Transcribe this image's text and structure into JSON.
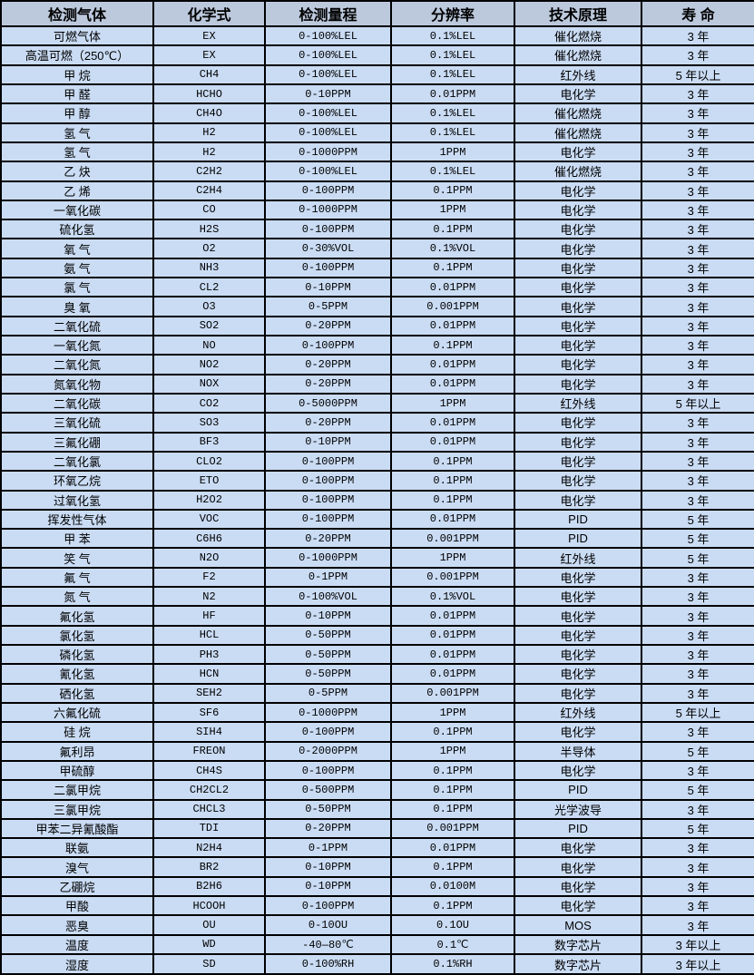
{
  "table": {
    "columns": [
      "检测气体",
      "化学式",
      "检测量程",
      "分辨率",
      "技术原理",
      "寿 命"
    ],
    "rows": [
      [
        "可燃气体",
        "EX",
        "0-100%LEL",
        "0.1%LEL",
        "催化燃烧",
        "3 年"
      ],
      [
        "高温可燃（250℃）",
        "EX",
        "0-100%LEL",
        "0.1%LEL",
        "催化燃烧",
        "3 年"
      ],
      [
        "甲 烷",
        "CH4",
        "0-100%LEL",
        "0.1%LEL",
        "红外线",
        "5 年以上"
      ],
      [
        "甲 醛",
        "HCHO",
        "0-10PPM",
        "0.01PPM",
        "电化学",
        "3 年"
      ],
      [
        "甲 醇",
        "CH4O",
        "0-100%LEL",
        "0.1%LEL",
        "催化燃烧",
        "3 年"
      ],
      [
        "氢 气",
        "H2",
        "0-100%LEL",
        "0.1%LEL",
        "催化燃烧",
        "3 年"
      ],
      [
        "氢 气",
        "H2",
        "0-1000PPM",
        "1PPM",
        "电化学",
        "3 年"
      ],
      [
        "乙 炔",
        "C2H2",
        "0-100%LEL",
        "0.1%LEL",
        "催化燃烧",
        "3 年"
      ],
      [
        "乙 烯",
        "C2H4",
        "0-100PPM",
        "0.1PPM",
        "电化学",
        "3 年"
      ],
      [
        "一氧化碳",
        "CO",
        "0-1000PPM",
        "1PPM",
        "电化学",
        "3 年"
      ],
      [
        "硫化氢",
        "H2S",
        "0-100PPM",
        "0.1PPM",
        "电化学",
        "3 年"
      ],
      [
        "氧 气",
        "O2",
        "0-30%VOL",
        "0.1%VOL",
        "电化学",
        "3 年"
      ],
      [
        "氨 气",
        "NH3",
        "0-100PPM",
        "0.1PPM",
        "电化学",
        "3 年"
      ],
      [
        "氯 气",
        "CL2",
        "0-10PPM",
        "0.01PPM",
        "电化学",
        "3 年"
      ],
      [
        "臭 氧",
        "O3",
        "0-5PPM",
        "0.001PPM",
        "电化学",
        "3 年"
      ],
      [
        "二氧化硫",
        "SO2",
        "0-20PPM",
        "0.01PPM",
        "电化学",
        "3 年"
      ],
      [
        "一氧化氮",
        "NO",
        "0-100PPM",
        "0.1PPM",
        "电化学",
        "3 年"
      ],
      [
        "二氧化氮",
        "NO2",
        "0-20PPM",
        "0.01PPM",
        "电化学",
        "3 年"
      ],
      [
        "氮氧化物",
        "NOX",
        "0-20PPM",
        "0.01PPM",
        "电化学",
        "3 年"
      ],
      [
        "二氧化碳",
        "CO2",
        "0-5000PPM",
        "1PPM",
        "红外线",
        "5 年以上"
      ],
      [
        "三氧化硫",
        "SO3",
        "0-20PPM",
        "0.01PPM",
        "电化学",
        "3 年"
      ],
      [
        "三氟化硼",
        "BF3",
        "0-10PPM",
        "0.01PPM",
        "电化学",
        "3 年"
      ],
      [
        "二氧化氯",
        "CLO2",
        "0-100PPM",
        "0.1PPM",
        "电化学",
        "3 年"
      ],
      [
        "环氧乙烷",
        "ETO",
        "0-100PPM",
        "0.1PPM",
        "电化学",
        "3 年"
      ],
      [
        "过氧化氢",
        "H2O2",
        "0-100PPM",
        "0.1PPM",
        "电化学",
        "3 年"
      ],
      [
        "挥发性气体",
        "VOC",
        "0-100PPM",
        "0.01PPM",
        "PID",
        "5 年"
      ],
      [
        "甲 苯",
        "C6H6",
        "0-20PPM",
        "0.001PPM",
        "PID",
        "5 年"
      ],
      [
        "笑 气",
        "N2O",
        "0-1000PPM",
        "1PPM",
        "红外线",
        "5 年"
      ],
      [
        "氟 气",
        "F2",
        "0-1PPM",
        "0.001PPM",
        "电化学",
        "3 年"
      ],
      [
        "氮 气",
        "N2",
        "0-100%VOL",
        "0.1%VOL",
        "电化学",
        "3 年"
      ],
      [
        "氟化氢",
        "HF",
        "0-10PPM",
        "0.01PPM",
        "电化学",
        "3 年"
      ],
      [
        "氯化氢",
        "HCL",
        "0-50PPM",
        "0.01PPM",
        "电化学",
        "3 年"
      ],
      [
        "磷化氢",
        "PH3",
        "0-50PPM",
        "0.01PPM",
        "电化学",
        "3 年"
      ],
      [
        "氰化氢",
        "HCN",
        "0-50PPM",
        "0.01PPM",
        "电化学",
        "3 年"
      ],
      [
        "硒化氢",
        "SEH2",
        "0-5PPM",
        "0.001PPM",
        "电化学",
        "3 年"
      ],
      [
        "六氟化硫",
        "SF6",
        "0-1000PPM",
        "1PPM",
        "红外线",
        "5 年以上"
      ],
      [
        "硅 烷",
        "SIH4",
        "0-100PPM",
        "0.1PPM",
        "电化学",
        "3 年"
      ],
      [
        "氟利昂",
        "FREON",
        "0-2000PPM",
        "1PPM",
        "半导体",
        "5 年"
      ],
      [
        "甲硫醇",
        "CH4S",
        "0-100PPM",
        "0.1PPM",
        "电化学",
        "3 年"
      ],
      [
        "二氯甲烷",
        "CH2CL2",
        "0-500PPM",
        "0.1PPM",
        "PID",
        "5 年"
      ],
      [
        "三氯甲烷",
        "CHCL3",
        "0-50PPM",
        "0.1PPM",
        "光学波导",
        "3 年"
      ],
      [
        "甲苯二异氰酸酯",
        "TDI",
        "0-20PPM",
        "0.001PPM",
        "PID",
        "5 年"
      ],
      [
        "联氨",
        "N2H4",
        "0-1PPM",
        "0.01PPM",
        "电化学",
        "3 年"
      ],
      [
        "溴气",
        "BR2",
        "0-10PPM",
        "0.1PPM",
        "电化学",
        "3 年"
      ],
      [
        "乙硼烷",
        "B2H6",
        "0-10PPM",
        "0.0100M",
        "电化学",
        "3 年"
      ],
      [
        "甲酸",
        "HCOOH",
        "0-100PPM",
        "0.1PPM",
        "电化学",
        "3 年"
      ],
      [
        "恶臭",
        "OU",
        "0-10OU",
        "0.1OU",
        "MOS",
        "3 年"
      ],
      [
        "温度",
        "WD",
        "-40—80℃",
        "0.1℃",
        "数字芯片",
        "3 年以上"
      ],
      [
        "湿度",
        "SD",
        "0-100%RH",
        "0.1%RH",
        "数字芯片",
        "3 年以上"
      ]
    ],
    "colors": {
      "header_bg": "#BCC9DD",
      "row_bg": "#CADCF4",
      "border": "#000000",
      "text": "#000000"
    }
  }
}
